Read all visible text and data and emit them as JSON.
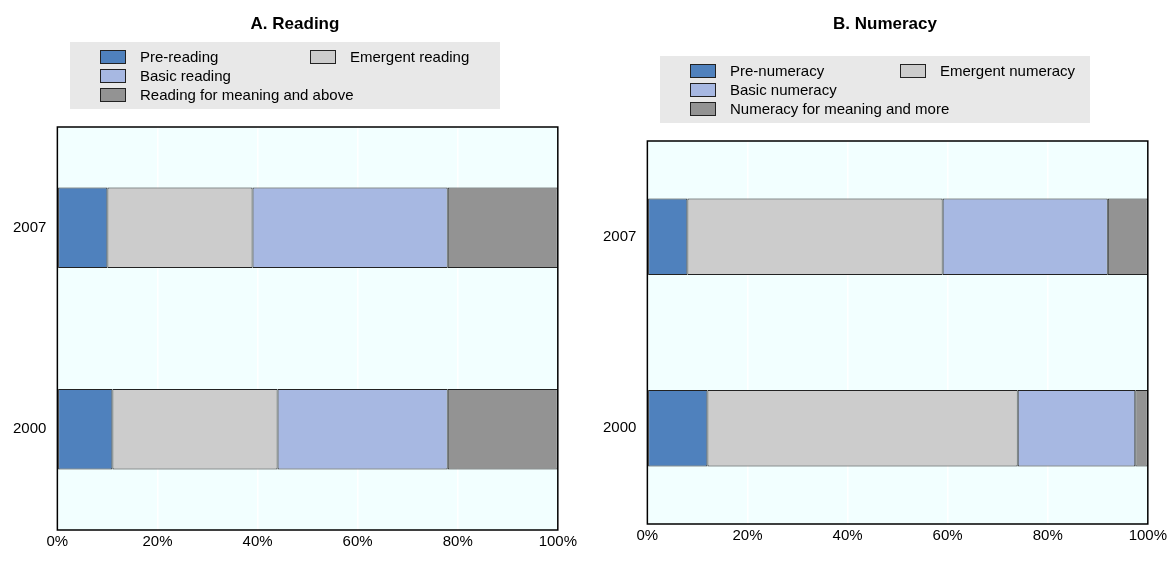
{
  "chart_data": [
    {
      "type": "bar",
      "title": "A. Reading",
      "orientation": "horizontal",
      "stacked": true,
      "categories": [
        "2007",
        "2000"
      ],
      "series": [
        {
          "name": "Pre-reading",
          "color": "#4f81bd",
          "values": [
            10,
            11
          ]
        },
        {
          "name": "Emergent reading",
          "color": "#cccccc",
          "values": [
            29,
            33
          ]
        },
        {
          "name": "Basic reading",
          "color": "#a7b8e2",
          "values": [
            39,
            34
          ]
        },
        {
          "name": "Reading for meaning and above",
          "color": "#939393",
          "values": [
            22,
            22
          ]
        }
      ],
      "xlim": [
        0,
        100
      ],
      "xticks": [
        {
          "value": 0,
          "label": "0%"
        },
        {
          "value": 20,
          "label": "20%"
        },
        {
          "value": 40,
          "label": "40%"
        },
        {
          "value": 60,
          "label": "60%"
        },
        {
          "value": 80,
          "label": "80%"
        },
        {
          "value": 100,
          "label": "100%"
        }
      ],
      "grid": "x",
      "legend": "top"
    },
    {
      "type": "bar",
      "title": "B. Numeracy",
      "orientation": "horizontal",
      "stacked": true,
      "categories": [
        "2007",
        "2000"
      ],
      "series": [
        {
          "name": "Pre-numeracy",
          "color": "#4f81bd",
          "values": [
            8,
            12
          ]
        },
        {
          "name": "Emergent numeracy",
          "color": "#cccccc",
          "values": [
            51,
            62
          ]
        },
        {
          "name": "Basic numeracy",
          "color": "#a7b8e2",
          "values": [
            33,
            23.5
          ]
        },
        {
          "name": "Numeracy for meaning and more",
          "color": "#939393",
          "values": [
            8,
            2.5
          ]
        }
      ],
      "xlim": [
        0,
        100
      ],
      "xticks": [
        {
          "value": 0,
          "label": "0%"
        },
        {
          "value": 20,
          "label": "20%"
        },
        {
          "value": 40,
          "label": "40%"
        },
        {
          "value": 60,
          "label": "60%"
        },
        {
          "value": 80,
          "label": "80%"
        },
        {
          "value": 100,
          "label": "100%"
        }
      ],
      "grid": "x",
      "legend": "top"
    }
  ]
}
